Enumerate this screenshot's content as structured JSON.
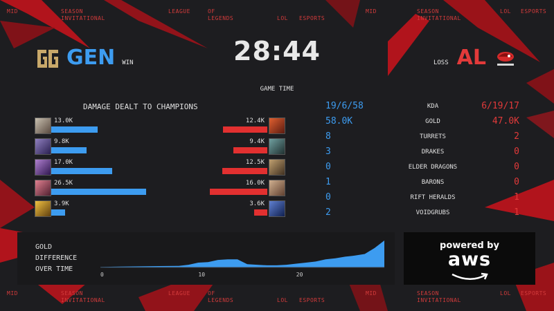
{
  "ticker": [
    "MID",
    "SEASON",
    "INVITATIONAL",
    "LEAGUE",
    "OF",
    "LEGENDS",
    "LOL",
    "ESPORTS",
    "MID",
    "SEASON",
    "INVITATIONAL",
    "LOL",
    "ESPORTS"
  ],
  "header": {
    "timer": "28:44",
    "game_time_label": "GAME TIME",
    "left_team": {
      "name": "GEN",
      "result": "WIN",
      "logo_icon": "gen-g-logo",
      "color": "#3d9cf0"
    },
    "right_team": {
      "name": "AL",
      "result": "LOSS",
      "logo_icon": "anyones-legend-logo",
      "color": "#e23a3a"
    }
  },
  "damage": {
    "title": "DAMAGE DEALT TO CHAMPIONS",
    "max_value": 26500,
    "left": [
      {
        "label": "13.0K",
        "value": 13000,
        "icon": "champion-portrait-icon"
      },
      {
        "label": "9.8K",
        "value": 9800,
        "icon": "champion-portrait-icon"
      },
      {
        "label": "17.0K",
        "value": 17000,
        "icon": "champion-portrait-icon"
      },
      {
        "label": "26.5K",
        "value": 26500,
        "icon": "champion-portrait-icon"
      },
      {
        "label": "3.9K",
        "value": 3900,
        "icon": "champion-portrait-icon"
      }
    ],
    "right": [
      {
        "label": "12.4K",
        "value": 12400,
        "icon": "champion-portrait-icon"
      },
      {
        "label": "9.4K",
        "value": 9400,
        "icon": "champion-portrait-icon"
      },
      {
        "label": "12.5K",
        "value": 12500,
        "icon": "champion-portrait-icon"
      },
      {
        "label": "16.0K",
        "value": 16000,
        "icon": "champion-portrait-icon"
      },
      {
        "label": "3.6K",
        "value": 3600,
        "icon": "champion-portrait-icon"
      }
    ]
  },
  "stats": [
    {
      "label": "KDA",
      "left": "19/6/58",
      "right": "6/19/17"
    },
    {
      "label": "GOLD",
      "left": "58.0K",
      "right": "47.0K"
    },
    {
      "label": "TURRETS",
      "left": "8",
      "right": "2"
    },
    {
      "label": "DRAKES",
      "left": "3",
      "right": "0"
    },
    {
      "label": "ELDER DRAGONS",
      "left": "0",
      "right": "0"
    },
    {
      "label": "BARONS",
      "left": "1",
      "right": "0"
    },
    {
      "label": "RIFT HERALDS",
      "left": "0",
      "right": "1"
    },
    {
      "label": "VOIDGRUBS",
      "left": "2",
      "right": "1"
    }
  ],
  "gold_chart": {
    "title_lines": [
      "GOLD",
      "DIFFERENCE",
      "OVER TIME"
    ],
    "x_ticks": [
      "0",
      "10",
      "20"
    ],
    "x_tick_values": [
      0,
      10,
      20
    ],
    "x_max": 29,
    "points": [
      [
        0,
        0.02
      ],
      [
        2,
        0.03
      ],
      [
        4,
        0.04
      ],
      [
        6,
        0.05
      ],
      [
        8,
        0.06
      ],
      [
        9,
        0.1
      ],
      [
        10,
        0.18
      ],
      [
        11,
        0.2
      ],
      [
        12,
        0.28
      ],
      [
        13,
        0.3
      ],
      [
        14,
        0.3
      ],
      [
        15,
        0.12
      ],
      [
        16,
        0.1
      ],
      [
        17,
        0.08
      ],
      [
        18,
        0.08
      ],
      [
        19,
        0.1
      ],
      [
        20,
        0.14
      ],
      [
        21,
        0.18
      ],
      [
        22,
        0.22
      ],
      [
        23,
        0.3
      ],
      [
        24,
        0.34
      ],
      [
        25,
        0.4
      ],
      [
        26,
        0.44
      ],
      [
        27,
        0.5
      ],
      [
        28,
        0.72
      ],
      [
        29,
        1.0
      ]
    ],
    "color": "#3d9cf0"
  },
  "sponsor": {
    "line1": "powered by",
    "line2": "aws"
  }
}
